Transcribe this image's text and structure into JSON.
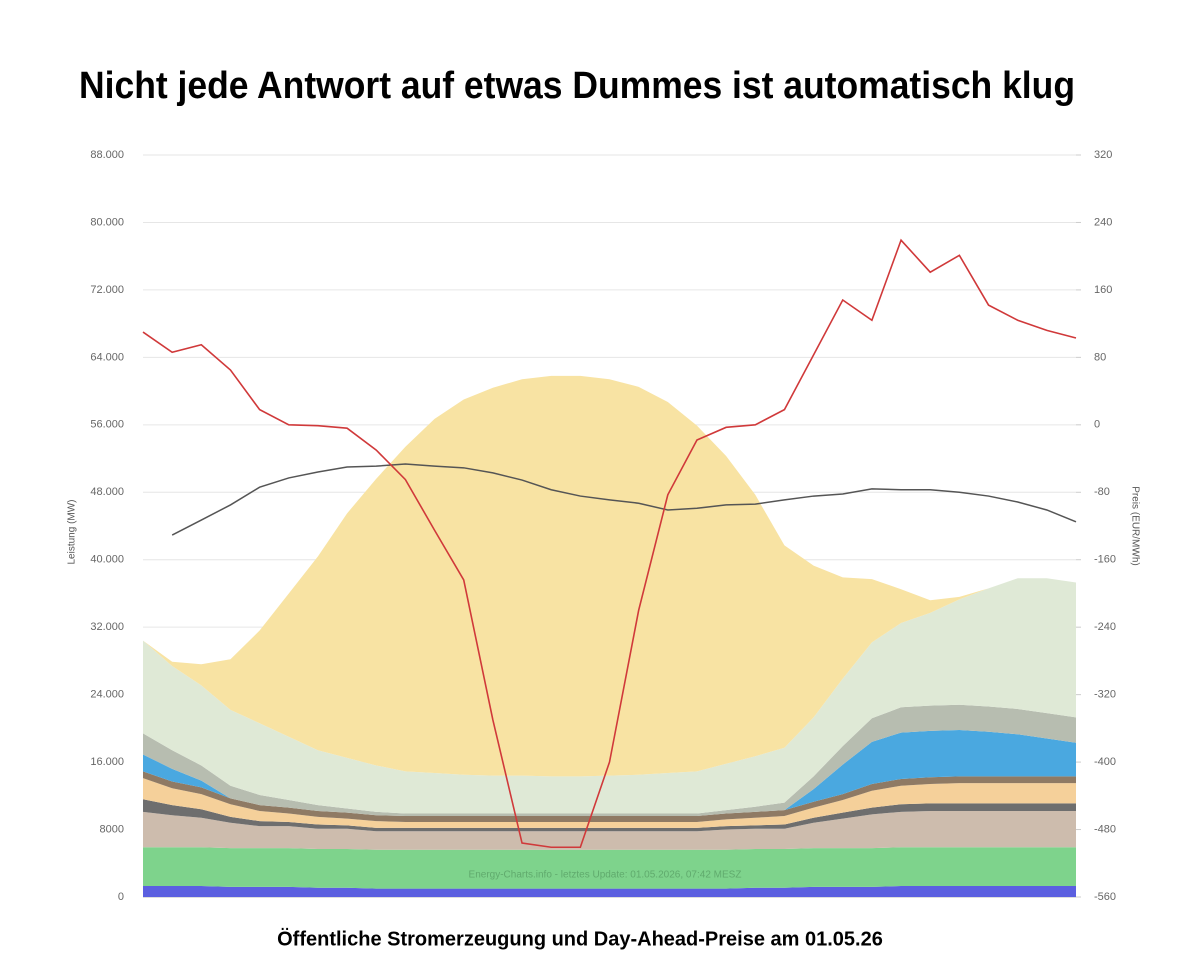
{
  "title": "Nicht jede Antwort auf etwas Dummes ist automatisch klug",
  "caption": "Öffentliche Stromerzeugung und Day-Ahead-Preise am 01.05.26",
  "chart_data": {
    "type": "stacked-area-line",
    "ylabel": "Leistung (MW)",
    "y2label": "Preis (EUR/MWh)",
    "annotation": "Energy-Charts.info - letztes Update: 01.05.2026, 07:42 MESZ",
    "categories": [
      null,
      null,
      null,
      null,
      null,
      null,
      null,
      null,
      null,
      null,
      null,
      null,
      null,
      null,
      null,
      null,
      null,
      null,
      null,
      null,
      null,
      null,
      null,
      null,
      null,
      null,
      null,
      null,
      null,
      null,
      null,
      null,
      null
    ],
    "ylim": [
      0,
      88000
    ],
    "yticks": [
      0,
      8000,
      {
        "value": 16000,
        "label": "16.000"
      },
      {
        "value": 24000,
        "label": "24.000"
      },
      {
        "value": 32000,
        "label": "32.000"
      },
      {
        "value": 40000,
        "label": "40.000"
      },
      {
        "value": 48000,
        "label": "48.000"
      },
      {
        "value": 56000,
        "label": "56.000"
      },
      {
        "value": 64000,
        "label": "64.000"
      },
      {
        "value": 72000,
        "label": "72.000"
      },
      {
        "value": 80000,
        "label": "80.000"
      },
      {
        "value": 88000,
        "label": "88.000"
      }
    ],
    "y2lim": [
      -560,
      320
    ],
    "y2ticks": [
      -560,
      -480,
      -400,
      -320,
      -240,
      -160,
      -80,
      0,
      80,
      160,
      240,
      320
    ],
    "grid": true,
    "series": [
      {
        "type": "area",
        "color": "#5b5fe0",
        "values": [
          1300,
          1300,
          1300,
          1200,
          1200,
          1200,
          1100,
          1100,
          1000,
          1000,
          1000,
          1000,
          1000,
          1000,
          1000,
          1000,
          1000,
          1000,
          1000,
          1000,
          1000,
          1100,
          1100,
          1200,
          1200,
          1200,
          1300,
          1300,
          1300,
          1300,
          1300,
          1300,
          1300
        ]
      },
      {
        "type": "area",
        "color": "#7ed38c",
        "values": [
          4600,
          4600,
          4600,
          4600,
          4600,
          4600,
          4600,
          4600,
          4600,
          4600,
          4600,
          4600,
          4600,
          4600,
          4600,
          4600,
          4600,
          4600,
          4600,
          4600,
          4600,
          4600,
          4600,
          4600,
          4600,
          4600,
          4600,
          4600,
          4600,
          4600,
          4600,
          4600,
          4600
        ]
      },
      {
        "type": "area",
        "color": "#cdbcad",
        "values": [
          4200,
          3800,
          3500,
          3000,
          2600,
          2600,
          2400,
          2400,
          2200,
          2200,
          2200,
          2200,
          2200,
          2200,
          2200,
          2200,
          2200,
          2200,
          2200,
          2200,
          2400,
          2400,
          2400,
          3000,
          3500,
          4000,
          4200,
          4300,
          4300,
          4300,
          4300,
          4300,
          4300
        ]
      },
      {
        "type": "area",
        "color": "#6e6e6e",
        "values": [
          1500,
          1200,
          1000,
          700,
          600,
          500,
          500,
          400,
          400,
          400,
          400,
          400,
          400,
          400,
          400,
          400,
          400,
          400,
          400,
          400,
          400,
          400,
          500,
          600,
          700,
          800,
          900,
          900,
          900,
          900,
          900,
          900,
          900
        ]
      },
      {
        "type": "area",
        "color": "#f5d09a",
        "values": [
          2500,
          2000,
          1800,
          1500,
          1200,
          1000,
          900,
          800,
          800,
          700,
          700,
          700,
          700,
          700,
          700,
          700,
          700,
          700,
          700,
          700,
          800,
          900,
          1000,
          1200,
          1500,
          2000,
          2200,
          2300,
          2400,
          2400,
          2400,
          2400,
          2400
        ]
      },
      {
        "type": "area",
        "color": "#8f7a64",
        "values": [
          800,
          800,
          800,
          700,
          700,
          700,
          700,
          700,
          700,
          700,
          700,
          700,
          700,
          700,
          700,
          700,
          700,
          700,
          700,
          700,
          700,
          700,
          700,
          700,
          700,
          800,
          800,
          800,
          800,
          800,
          800,
          800,
          800
        ]
      },
      {
        "type": "area",
        "color": "#4aa8e0",
        "values": [
          2000,
          1500,
          800,
          0,
          0,
          0,
          0,
          0,
          0,
          0,
          0,
          0,
          0,
          0,
          0,
          0,
          0,
          0,
          0,
          0,
          0,
          0,
          0,
          1500,
          3500,
          5000,
          5500,
          5500,
          5500,
          5300,
          5000,
          4500,
          4000
        ]
      },
      {
        "type": "area",
        "color": "#b7bdb0",
        "values": [
          2500,
          2200,
          1800,
          1500,
          1200,
          900,
          700,
          500,
          400,
          300,
          300,
          300,
          300,
          300,
          300,
          300,
          300,
          300,
          300,
          300,
          400,
          600,
          900,
          1500,
          2200,
          2800,
          3000,
          3000,
          3000,
          3000,
          3000,
          3000,
          3000
        ]
      },
      {
        "type": "area",
        "color": "#dfe9d6",
        "values": [
          11000,
          10000,
          9500,
          9000,
          8500,
          7500,
          6500,
          6000,
          5500,
          5000,
          4800,
          4600,
          4500,
          4500,
          4400,
          4400,
          4500,
          4600,
          4800,
          5000,
          5500,
          6000,
          6500,
          7000,
          8000,
          9000,
          10000,
          11000,
          12500,
          14000,
          15500,
          16000,
          16000
        ]
      },
      {
        "type": "area",
        "color": "#f8e3a3",
        "values": [
          0,
          500,
          2500,
          6000,
          11000,
          17000,
          23000,
          29000,
          34000,
          38500,
          42000,
          44500,
          46000,
          47000,
          47500,
          47500,
          47000,
          46000,
          44000,
          41000,
          36500,
          31000,
          24000,
          18000,
          12000,
          7500,
          4000,
          1500,
          300,
          0,
          0,
          0,
          0
        ]
      },
      {
        "type": "line",
        "color": "#555555",
        "values": [
          null,
          42930,
          44700,
          46500,
          48600,
          49700,
          50400,
          51000,
          51100,
          51350,
          51100,
          50900,
          50300,
          49450,
          48300,
          47550,
          47100,
          46700,
          45900,
          46100,
          46500,
          46600,
          47100,
          47550,
          47800,
          48400,
          48300,
          48300,
          48000,
          47550,
          46850,
          45900,
          44500
        ]
      },
      {
        "type": "line",
        "axis": "y2",
        "color": "#d0393a",
        "values": [
          110,
          86,
          95,
          65,
          18,
          0,
          -1,
          -4,
          -30,
          -65,
          -125,
          -184,
          -350,
          -496,
          -501,
          -501,
          -400,
          -220,
          -83,
          -18,
          -3,
          0,
          18,
          83,
          148,
          124,
          219,
          181,
          201,
          142,
          124,
          112,
          103
        ]
      }
    ]
  }
}
